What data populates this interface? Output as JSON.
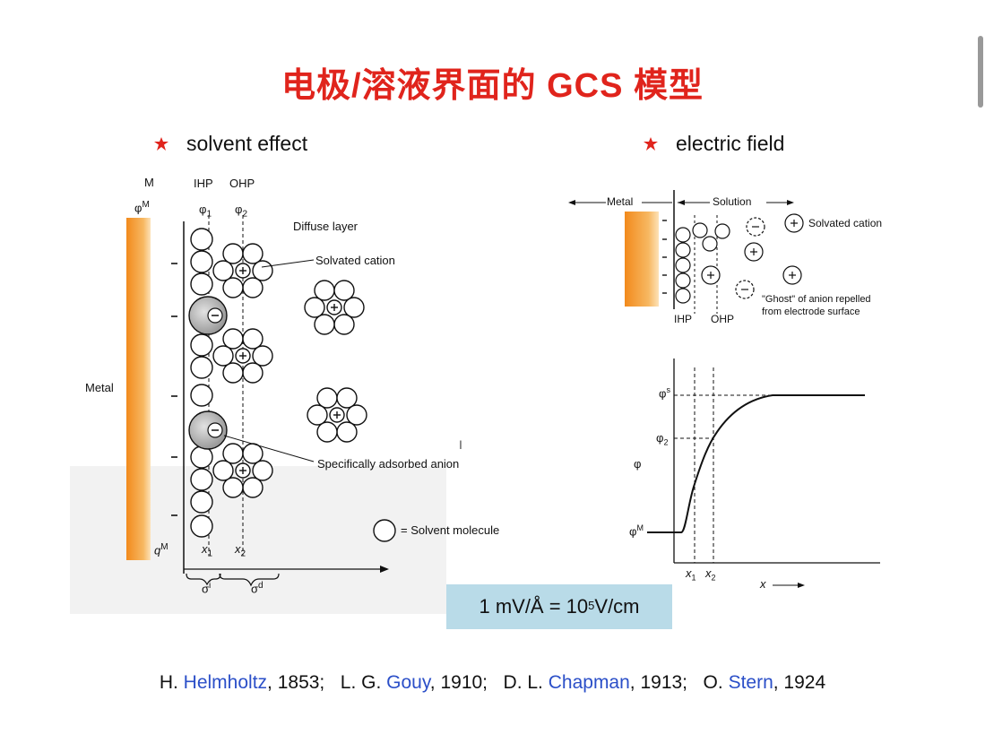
{
  "title": "电极/溶液界面的 GCS 模型",
  "bullets": {
    "left": "solvent effect",
    "right": "electric field"
  },
  "accent_color": "#e0241c",
  "left_diagram": {
    "labels": {
      "m": "M",
      "phi_m": "φ",
      "phi_m_sup": "M",
      "ihp": "IHP",
      "ohp": "OHP",
      "phi1": "φ",
      "phi1_sub": "1",
      "phi2": "φ",
      "phi2_sub": "2",
      "diffuse": "Diffuse layer",
      "solvated_cation": "Solvated cation",
      "metal": "Metal",
      "adsorbed_anion": "Specifically adsorbed anion",
      "solvent_legend": "= Solvent molecule",
      "q": "q",
      "q_sup": "M",
      "x1": "x",
      "x1_sub": "1",
      "x2": "x",
      "x2_sub": "2",
      "sigma_i": "σ",
      "sigma_i_sup": "i",
      "sigma_d": "σ",
      "sigma_d_sup": "d",
      "minus": "−",
      "plus": "+"
    }
  },
  "right_top_diagram": {
    "labels": {
      "metal": "Metal",
      "solution": "Solution",
      "solvated_cation": "Solvated cation",
      "ghost_line1": "\"Ghost\" of anion repelled",
      "ghost_line2": "from electrode surface",
      "ihp": "IHP",
      "ohp": "OHP"
    }
  },
  "potential_chart": {
    "labels": {
      "phi_s": "φ",
      "phi_s_sup": "s",
      "phi_2": "φ",
      "phi_2_sub": "2",
      "phi": "φ",
      "phi_m": "φ",
      "phi_m_sup": "M",
      "x1": "x",
      "x1_sub": "1",
      "x2": "x",
      "x2_sub": "2",
      "x": "x"
    }
  },
  "formula": {
    "prefix": "1 mV/Å = 10",
    "exp": "5",
    "suffix": " V/cm"
  },
  "references": [
    {
      "initials": "H. ",
      "name": "Helmholtz",
      "year": ", 1853;"
    },
    {
      "initials": "L. G. ",
      "name": "Gouy",
      "year": ", 1910;"
    },
    {
      "initials": "D. L. ",
      "name": "Chapman",
      "year": ", 1913;"
    },
    {
      "initials": "O. ",
      "name": "Stern",
      "year": ", 1924"
    }
  ]
}
